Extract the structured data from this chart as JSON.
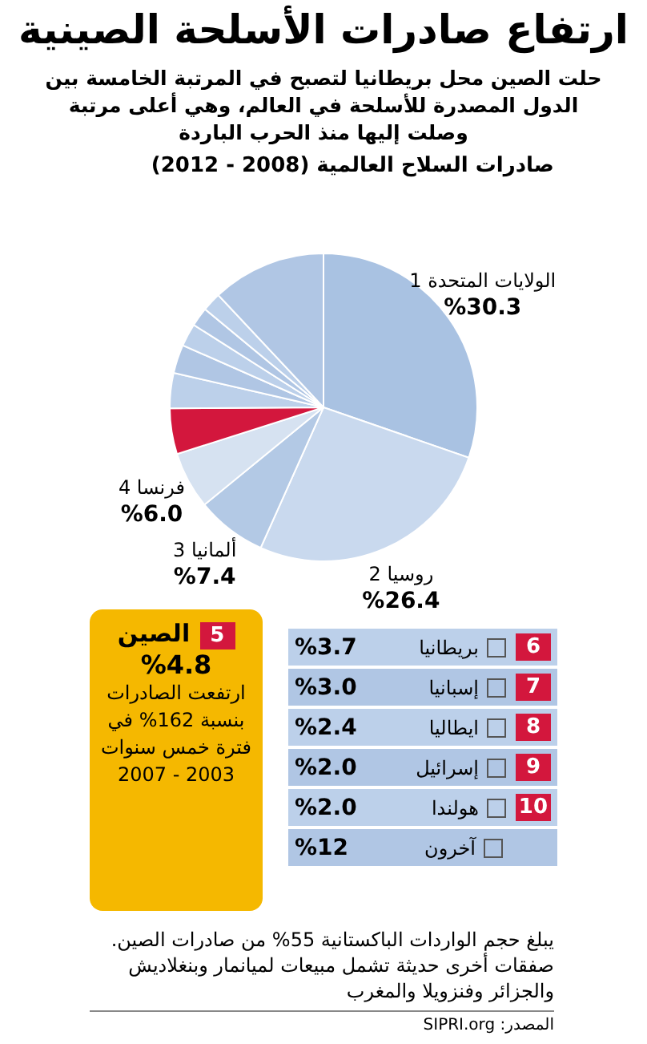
{
  "chart_data": {
    "type": "pie",
    "title": "ارتفاع صادرات الأسلحة الصينية",
    "subtitle": "حلت الصين محل بريطانيا لتصبح في المرتبة الخامسة بين الدول المصدرة للأسلحة في العالم، وهي أعلى مرتبة وصلت إليها منذ الحرب الباردة",
    "categories": [
      "الولايات المتحدة",
      "روسيا",
      "ألمانيا",
      "فرنسا",
      "الصين",
      "بريطانيا",
      "إسبانيا",
      "ايطاليا",
      "إسرائيل",
      "هولندا",
      "آخرون"
    ],
    "values": [
      30.3,
      26.4,
      7.4,
      6.0,
      4.8,
      3.7,
      3.0,
      2.4,
      2.0,
      2.0,
      12
    ],
    "value_labels": [
      "%30.3",
      "%26.4",
      "%7.4",
      "%6.0",
      "%4.8",
      "%3.7",
      "%3.0",
      "%2.4",
      "%2.0",
      "%2.0",
      "%12"
    ],
    "colors": [
      "#a9c2e2",
      "#c9d9ee",
      "#b3c9e5",
      "#d6e2f1",
      "#d3173d",
      "#bcd0ea",
      "#b0c6e4",
      "#bcd0ea",
      "#b0c6e4",
      "#bcd0ea",
      "#b0c6e4"
    ],
    "annotations": [
      "1",
      "2",
      "3",
      "4",
      "5",
      "6",
      "7",
      "8",
      "9",
      "10",
      "صادرات السلاح العالمية (2008 - 2012)",
      "ارتفعت الصادرات بنسبة 162% في فترة خمس سنوات 2003 - 2007",
      "يبلغ حجم الواردات الباكستانية 55% من صادرات الصين. صفقات أخرى حديثة تشمل مبيعات لميانمار وبنغلاديش والجزائر وفنزويلا والمغرب",
      "المصدر: SIPRI.org"
    ],
    "legend": "bottom right"
  }
}
